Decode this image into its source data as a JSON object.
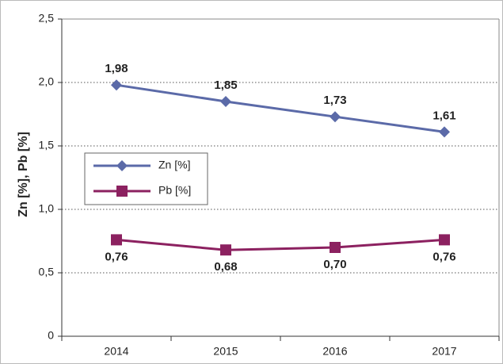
{
  "chart_data": {
    "type": "line",
    "y_label": "Zn [%], Pb [%]",
    "categories": [
      "2014",
      "2015",
      "2016",
      "2017"
    ],
    "series": [
      {
        "name": "Zn [%]",
        "color": "#5b6aa8",
        "marker": "diamond",
        "values": [
          1.98,
          1.85,
          1.73,
          1.61
        ],
        "value_labels": [
          "1,98",
          "1,85",
          "1,73",
          "1,61"
        ],
        "label_position": "above"
      },
      {
        "name": "Pb [%]",
        "color": "#8c2160",
        "marker": "square",
        "values": [
          0.76,
          0.68,
          0.7,
          0.76
        ],
        "value_labels": [
          "0,76",
          "0,68",
          "0,70",
          "0,76"
        ],
        "label_position": "below"
      }
    ],
    "ylim": [
      0,
      2.5
    ],
    "yticks": [
      0,
      {
        "value": 0.5,
        "label": "0,5"
      },
      {
        "value": 1.0,
        "label": "1,0"
      },
      {
        "value": 1.5,
        "label": "1,5"
      },
      {
        "value": 2.0,
        "label": "2,0"
      },
      {
        "value": 2.5,
        "label": "2,5"
      }
    ],
    "grid": true
  }
}
